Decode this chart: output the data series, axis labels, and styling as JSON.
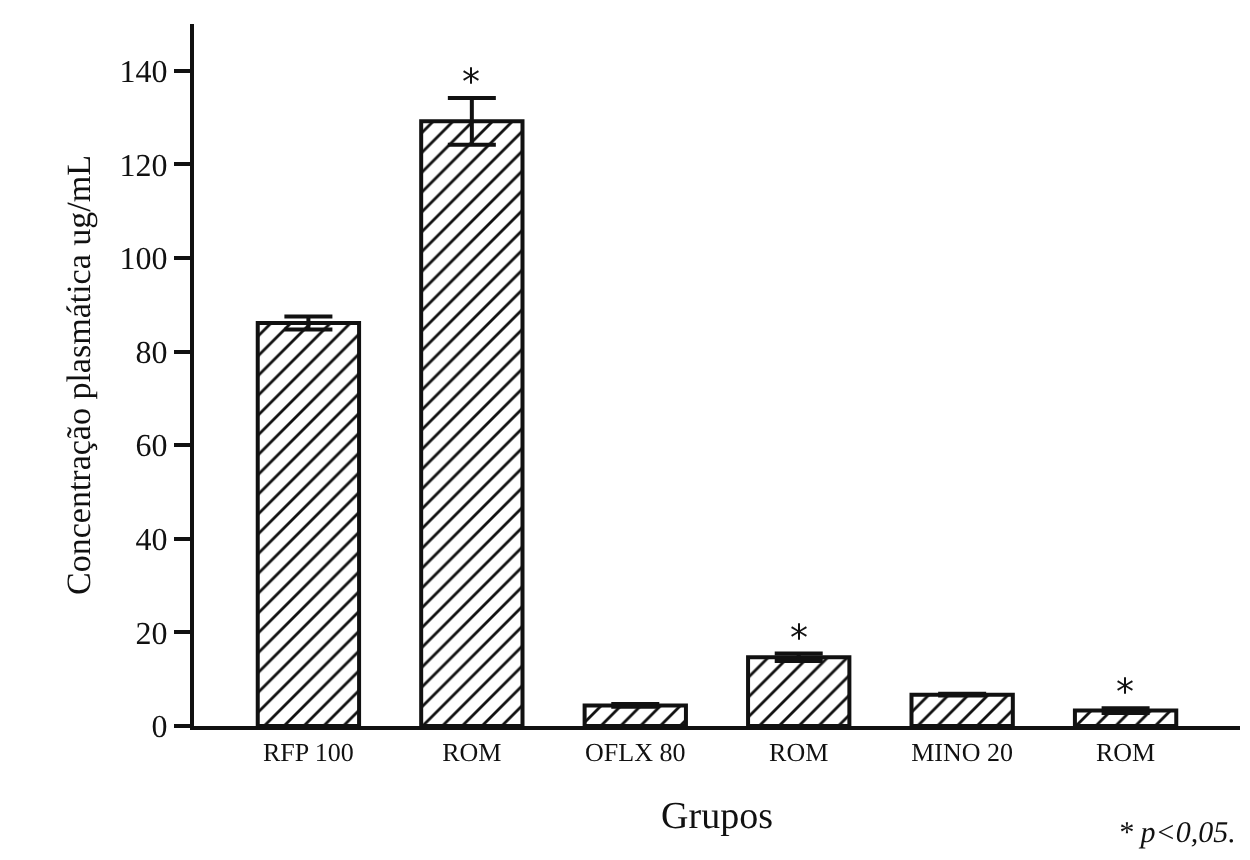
{
  "chart_data": {
    "type": "bar",
    "xlabel": "Grupos",
    "ylabel": "Concentração plasmática ug/mL",
    "categories": [
      "RFP 100",
      "ROM",
      "OFLX 80",
      "ROM",
      "MINO 20",
      "ROM"
    ],
    "values": [
      86.1,
      129.2,
      4.4,
      14.7,
      6.7,
      3.3
    ],
    "errors": [
      1.4,
      5,
      0.3,
      0.8,
      0.2,
      0.5
    ],
    "color": "#111111",
    "ylim": [
      0,
      150
    ],
    "yticks": [
      0,
      20,
      40,
      60,
      80,
      100,
      120,
      140
    ],
    "value_labels": [
      null,
      "*",
      null,
      "*",
      null,
      "*"
    ],
    "annotations": [
      "* p<0,05."
    ]
  }
}
